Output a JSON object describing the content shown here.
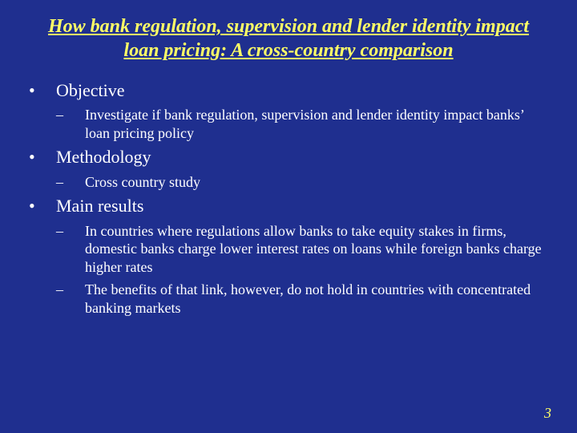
{
  "slide": {
    "background_color": "#1f2f8f",
    "title_color": "#ffff66",
    "body_color": "#ffffff",
    "page_number_color": "#ffff66",
    "font_family": "Times New Roman",
    "title_fontsize": 24,
    "l1_fontsize": 22,
    "l2_fontsize": 18,
    "title": "How bank regulation, supervision and lender identity impact loan pricing: A cross-country comparison",
    "page_number": "3",
    "sections": [
      {
        "heading": "Objective",
        "items": [
          "Investigate if bank regulation, supervision and lender identity impact banks’ loan pricing policy"
        ]
      },
      {
        "heading": "Methodology",
        "items": [
          "Cross country study"
        ]
      },
      {
        "heading": "Main results",
        "items": [
          "In countries where regulations allow banks to take equity stakes in firms, domestic banks charge lower interest rates on loans while foreign banks charge higher rates",
          "The benefits of that link, however, do not hold in countries with concentrated banking markets"
        ]
      }
    ]
  }
}
